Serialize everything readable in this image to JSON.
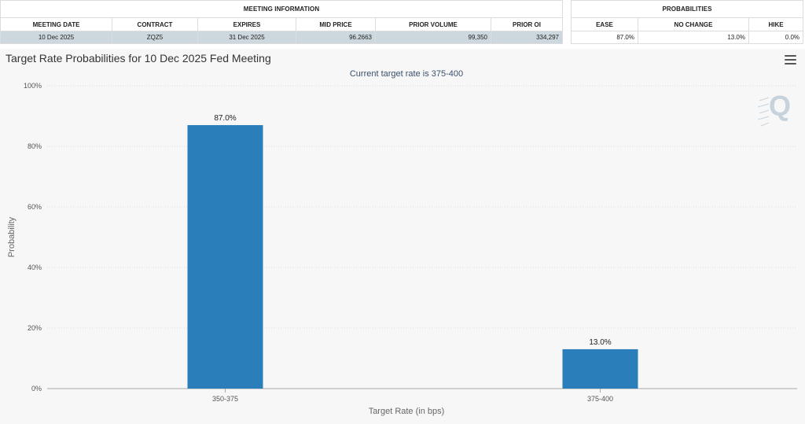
{
  "meeting_info": {
    "group_label": "MEETING INFORMATION",
    "headers": [
      "MEETING DATE",
      "CONTRACT",
      "EXPIRES",
      "MID PRICE",
      "PRIOR VOLUME",
      "PRIOR OI"
    ],
    "row": [
      "10 Dec 2025",
      "ZQZ5",
      "31 Dec 2025",
      "96.2663",
      "99,350",
      "334,297"
    ]
  },
  "probabilities": {
    "group_label": "PROBABILITIES",
    "headers": [
      "EASE",
      "NO CHANGE",
      "HIKE"
    ],
    "row": [
      "87.0%",
      "13.0%",
      "0.0%"
    ]
  },
  "menu": {
    "icon": "hamburger-menu-icon"
  },
  "watermark": {
    "text": "Q"
  },
  "colors": {
    "bar": "#2a7fba",
    "grid": "#dcdcdc",
    "row_highlight": "#cdd8de"
  },
  "chart_data": {
    "type": "bar",
    "title": "Target Rate Probabilities for 10 Dec 2025 Fed Meeting",
    "subtitle": "Current target rate is 375-400",
    "xlabel": "Target Rate (in bps)",
    "ylabel": "Probability",
    "categories": [
      "350-375",
      "375-400"
    ],
    "values": [
      87.0,
      13.0
    ],
    "data_labels": [
      "87.0%",
      "13.0%"
    ],
    "y_ticks": [
      "0%",
      "20%",
      "40%",
      "60%",
      "80%",
      "100%"
    ],
    "ylim": [
      0,
      100
    ],
    "grid": true,
    "legend": "none"
  }
}
